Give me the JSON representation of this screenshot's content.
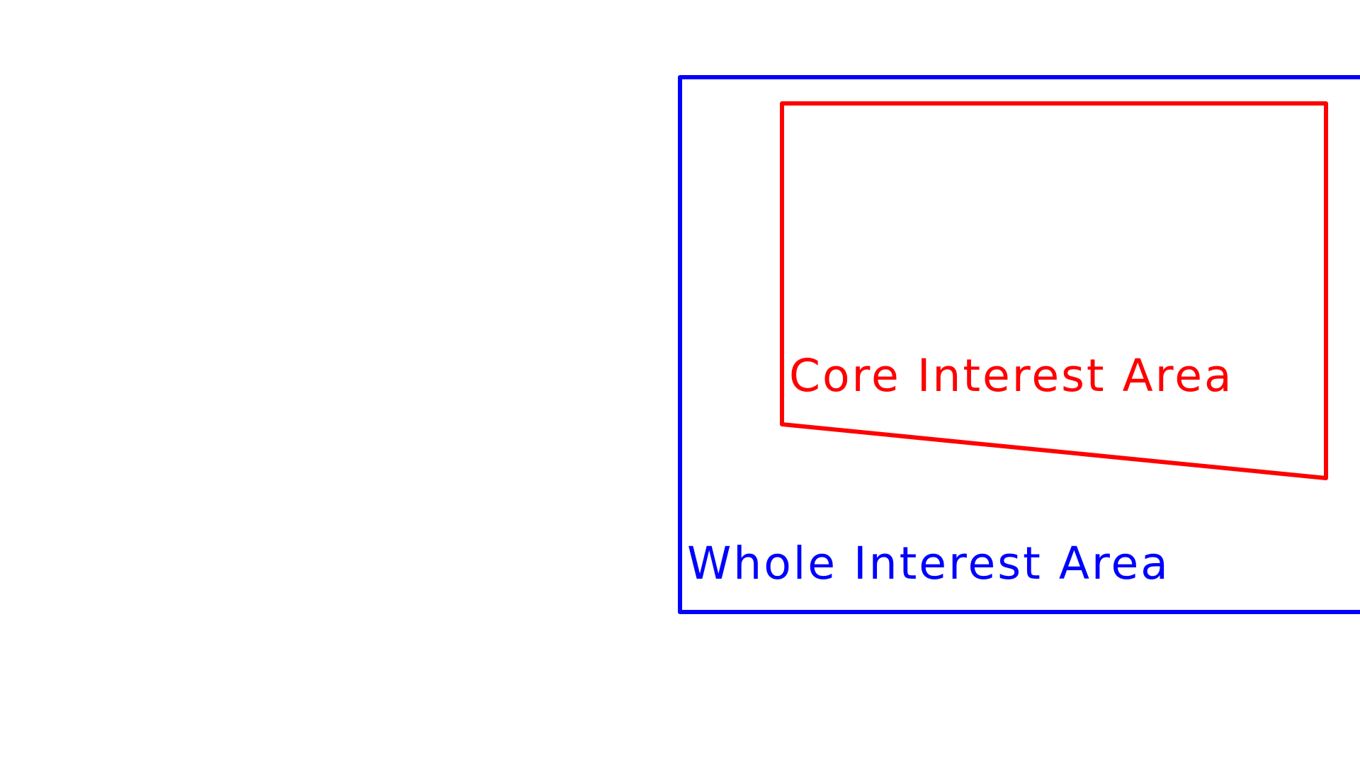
{
  "diagram": {
    "whole_area": {
      "label": "Whole Interest Area",
      "color": "#0000ff"
    },
    "core_area": {
      "label": "Core Interest Area",
      "color": "#ff0000"
    },
    "background": "#ffffff"
  }
}
